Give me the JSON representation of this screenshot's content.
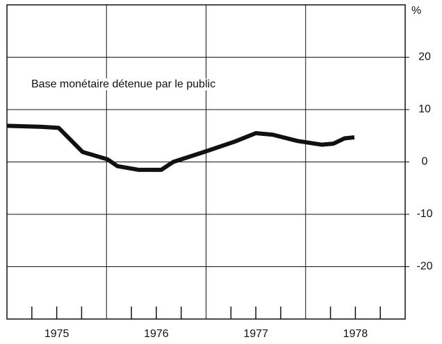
{
  "chart_data": {
    "type": "line",
    "y_unit": "%",
    "annotation": "Base monétaire détenue par le public",
    "x": [
      1975.0,
      1975.35,
      1975.52,
      1975.76,
      1976.01,
      1976.11,
      1976.32,
      1976.55,
      1976.67,
      1976.98,
      1977.29,
      1977.5,
      1977.67,
      1977.92,
      1978.16,
      1978.28,
      1978.39,
      1978.49
    ],
    "series": [
      {
        "color": "#111111",
        "values": [
          6.9,
          6.7,
          6.5,
          1.9,
          0.5,
          -0.8,
          -1.5,
          -1.5,
          0,
          1.9,
          3.9,
          5.5,
          5.2,
          4.0,
          3.3,
          3.5,
          4.5,
          4.7
        ]
      }
    ],
    "xlim": [
      1975,
      1979
    ],
    "xticks": [
      {
        "value": 1975.5,
        "label": "1975"
      },
      {
        "value": 1976.5,
        "label": "1976"
      },
      {
        "value": 1977.5,
        "label": "1977"
      },
      {
        "value": 1978.5,
        "label": "1978"
      }
    ],
    "xgrid": [
      1976,
      1977,
      1978
    ],
    "xminorticks": [
      1975.25,
      1975.5,
      1975.75,
      1976.25,
      1976.5,
      1976.75,
      1977.25,
      1977.5,
      1977.75,
      1978.25,
      1978.5,
      1978.75
    ],
    "ylim": [
      -30,
      30
    ],
    "yticks": [
      20,
      10,
      0,
      -10,
      -20
    ],
    "grid": true
  }
}
